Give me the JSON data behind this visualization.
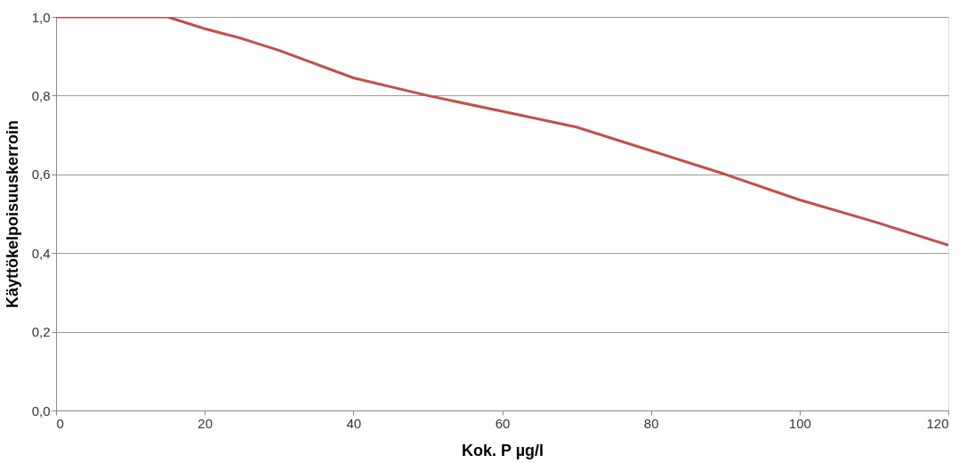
{
  "chart_data": {
    "type": "line",
    "xlabel": "Kok. P µg/l",
    "ylabel": "Käyttökelpoisuuskerroin",
    "x": [
      0,
      15,
      20,
      25,
      30,
      40,
      50,
      60,
      70,
      80,
      90,
      100,
      110,
      115,
      120
    ],
    "series": [
      {
        "color": "#c0504d",
        "values": [
          1.0,
          1.0,
          0.97,
          0.945,
          0.915,
          0.845,
          0.8,
          0.76,
          0.72,
          0.66,
          0.6,
          0.535,
          0.48,
          0.45,
          0.42
        ]
      }
    ],
    "xlim": [
      0,
      120
    ],
    "xticks": [
      0,
      20,
      40,
      60,
      80,
      100,
      120
    ],
    "ylim": [
      0,
      1
    ],
    "yticks": [
      {
        "value": 0,
        "label": "0,0"
      },
      {
        "value": 0.2,
        "label": "0,2"
      },
      {
        "value": 0.4,
        "label": "0,4"
      },
      {
        "value": 0.6,
        "label": "0,6"
      },
      {
        "value": 0.8,
        "label": "0,8"
      },
      {
        "value": 1,
        "label": "1,0"
      }
    ],
    "grid": "y",
    "legend": false,
    "marker": "none",
    "line_style": "solid"
  }
}
